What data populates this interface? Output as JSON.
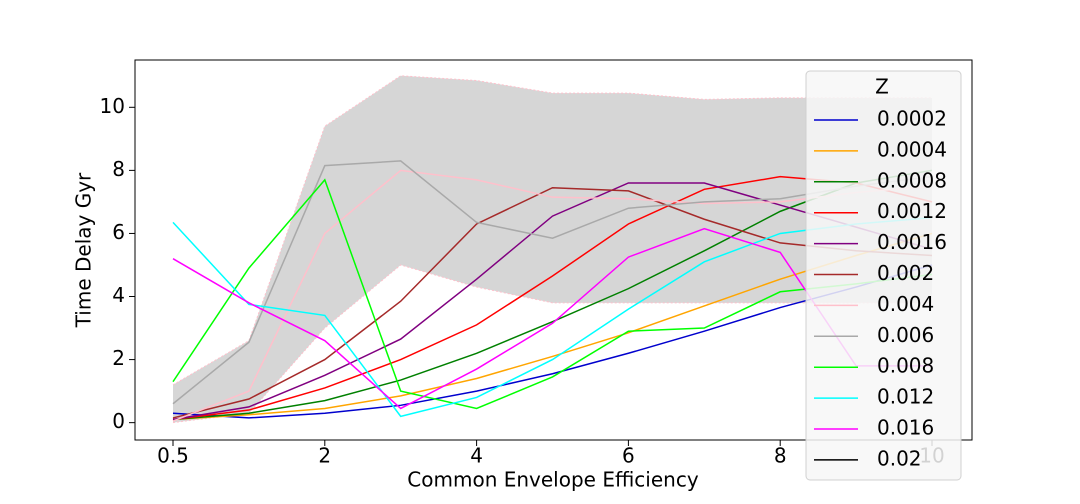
{
  "chart_data": {
    "type": "line",
    "xlabel": "Common Envelope Efficiency",
    "ylabel": "Time Delay Gyr",
    "categories": [
      0.5,
      null,
      2,
      null,
      4,
      null,
      6,
      null,
      8,
      null,
      10
    ],
    "ylim": [
      -0.55,
      11.5
    ],
    "yticks": [
      0,
      2,
      4,
      6,
      8,
      10
    ],
    "band": {
      "color": "#d6d6d6",
      "edge_color": "#ffc0cb",
      "upper": [
        1.2,
        2.6,
        9.4,
        11.0,
        10.85,
        10.45,
        10.45,
        10.25,
        10.3,
        10.3,
        10.3
      ],
      "lower": [
        0.0,
        0.3,
        3.0,
        5.0,
        4.3,
        3.8,
        3.8,
        3.8,
        3.8,
        3.8,
        3.8
      ]
    },
    "legend_title": "Z",
    "legend": "upper right",
    "series": [
      {
        "name": "0.0002",
        "color": "#0000cd",
        "values": [
          0.3,
          0.15,
          0.3,
          0.55,
          1.0,
          1.55,
          2.2,
          2.9,
          3.65,
          4.3,
          5.0
        ]
      },
      {
        "name": "0.0004",
        "color": "#ffa500",
        "values": [
          0.1,
          0.25,
          0.45,
          0.85,
          1.4,
          2.1,
          2.85,
          3.7,
          4.55,
          5.3,
          6.0
        ]
      },
      {
        "name": "0.0008",
        "color": "#008000",
        "values": [
          0.1,
          0.3,
          0.7,
          1.35,
          2.2,
          3.2,
          4.25,
          5.45,
          6.7,
          7.6,
          8.0
        ]
      },
      {
        "name": "0.0012",
        "color": "#ff0000",
        "values": [
          0.1,
          0.4,
          1.1,
          2.0,
          3.1,
          4.65,
          6.3,
          7.4,
          7.8,
          7.6,
          7.0
        ]
      },
      {
        "name": "0.0016",
        "color": "#800080",
        "values": [
          0.1,
          0.5,
          1.5,
          2.65,
          4.55,
          6.55,
          7.6,
          7.6,
          6.9,
          6.2,
          5.5
        ]
      },
      {
        "name": "0.002",
        "color": "#a52a2a",
        "values": [
          0.15,
          0.75,
          2.0,
          3.85,
          6.3,
          7.45,
          7.35,
          6.45,
          5.7,
          5.45,
          5.3
        ]
      },
      {
        "name": "0.004",
        "color": "#ffc0cb",
        "values": [
          0.05,
          1.0,
          6.0,
          8.0,
          7.7,
          7.15,
          7.1,
          6.95,
          7.0,
          7.3,
          7.5
        ]
      },
      {
        "name": "0.006",
        "color": "#a9a9a9",
        "values": [
          0.6,
          2.55,
          8.15,
          8.3,
          6.35,
          5.85,
          6.8,
          7.0,
          7.1,
          7.5,
          7.8
        ]
      },
      {
        "name": "0.008",
        "color": "#00ff00",
        "values": [
          1.3,
          4.9,
          7.7,
          1.0,
          0.45,
          1.45,
          2.9,
          3.0,
          4.15,
          4.4,
          4.7
        ]
      },
      {
        "name": "0.012",
        "color": "#00ffff",
        "values": [
          6.35,
          3.75,
          3.4,
          0.2,
          0.8,
          2.0,
          3.6,
          5.1,
          6.0,
          6.3,
          6.5
        ]
      },
      {
        "name": "0.016",
        "color": "#ff00ff",
        "values": [
          5.2,
          3.8,
          2.6,
          0.45,
          1.7,
          3.15,
          5.25,
          6.15,
          5.4,
          1.8,
          1.8
        ]
      },
      {
        "name": "0.02",
        "color": "#000000",
        "values": [
          null,
          null,
          null,
          null,
          null,
          null,
          null,
          null,
          null,
          null,
          null
        ]
      }
    ]
  }
}
